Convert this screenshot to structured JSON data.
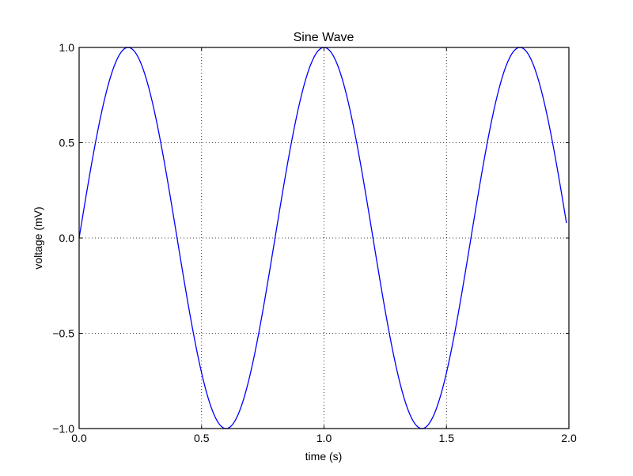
{
  "chart_data": {
    "type": "line",
    "title": "Sine Wave",
    "xlabel": "time (s)",
    "ylabel": "voltage (mV)",
    "xlim": [
      0.0,
      2.0
    ],
    "ylim": [
      -1.0,
      1.0
    ],
    "grid": true,
    "grid_style": "dotted",
    "xticks": [
      0.0,
      0.5,
      1.0,
      1.5,
      2.0
    ],
    "xtick_labels": [
      "0.0",
      "0.5",
      "1.0",
      "1.5",
      "2.0"
    ],
    "yticks": [
      -1.0,
      -0.5,
      0.0,
      0.5,
      1.0
    ],
    "ytick_labels": [
      "−1.0",
      "−0.5",
      "0.0",
      "0.5",
      "1.0"
    ],
    "series": [
      {
        "name": "voltage",
        "color": "#0000ff",
        "function": "sin(2*pi*1.25*t)",
        "t_start": 0.0,
        "t_end": 1.99,
        "t_step": 0.01,
        "key_points": [
          {
            "t": 0.0,
            "v": 0.0
          },
          {
            "t": 0.2,
            "v": 1.0
          },
          {
            "t": 0.4,
            "v": 0.0
          },
          {
            "t": 0.6,
            "v": -1.0
          },
          {
            "t": 0.8,
            "v": 0.0
          },
          {
            "t": 1.0,
            "v": 1.0
          },
          {
            "t": 1.2,
            "v": 0.0
          },
          {
            "t": 1.4,
            "v": -1.0
          },
          {
            "t": 1.6,
            "v": 0.0
          },
          {
            "t": 1.8,
            "v": 1.0
          },
          {
            "t": 1.99,
            "v": 0.08
          }
        ]
      }
    ]
  }
}
